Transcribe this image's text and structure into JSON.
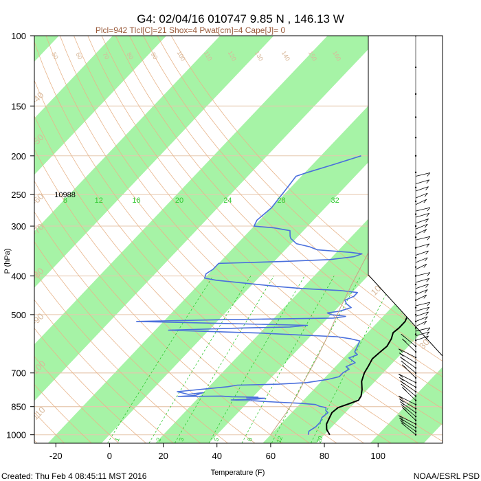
{
  "chart_data": {
    "type": "line",
    "title": "G4: 02/04/16 010747   9.85 N , 146.13 W",
    "subtitle": "Plcl=942 Tlcl[C]=21 Shox=4 Pwat[cm]=4 Cape[J]= 0",
    "xlabel": "Temperature (F)",
    "ylabel": "P (hPa)",
    "xlim": [
      -28,
      124
    ],
    "ylim": [
      1050,
      100
    ],
    "y_scale": "log",
    "x_ticks": [
      -20,
      0,
      20,
      40,
      60,
      80,
      100
    ],
    "y_ticks": [
      100,
      150,
      200,
      250,
      300,
      400,
      500,
      700,
      850,
      1000
    ],
    "footer_left": "Created: Thu Feb  4 08:45:11 MST 2016",
    "footer_right": "NOAA/ESRL PSD",
    "height_label": {
      "text": "10988",
      "x": -20.5,
      "p": 250
    },
    "colors": {
      "temperature": "#000000",
      "dewpoint": "#4a6fdc",
      "isotherm_band": "#a6f3a6",
      "dry_adiabat": "#e8b48a",
      "mixing_ratio": "#2fc82f",
      "parcel": "#c9a383",
      "subtitle": "#9a5a3a",
      "wind": "#000000"
    },
    "mixing_ratio_labels": [
      {
        "text": "8",
        "x": -16.5
      },
      {
        "text": "12",
        "x": -4
      },
      {
        "text": "16",
        "x": 10
      },
      {
        "text": "20",
        "x": 26
      },
      {
        "text": "24",
        "x": 44
      },
      {
        "text": "28",
        "x": 64
      },
      {
        "text": "32",
        "x": 84
      }
    ],
    "bottom_mixing_labels": [
      {
        "text": "1",
        "x": 3.5
      },
      {
        "text": "2",
        "x": 19
      },
      {
        "text": "3",
        "x": 27.5
      },
      {
        "text": "5",
        "x": 40.5
      },
      {
        "text": "8",
        "x": 53
      },
      {
        "text": "12",
        "x": 64
      },
      {
        "text": "20",
        "x": 79
      }
    ],
    "dry_adiabat_labels": [
      {
        "text": "50",
        "x": -21,
        "p": 113
      },
      {
        "text": "60",
        "x": -12,
        "p": 113
      },
      {
        "text": "70",
        "x": -2,
        "p": 113
      },
      {
        "text": "80",
        "x": 7,
        "p": 113
      },
      {
        "text": "90",
        "x": 16,
        "p": 113
      },
      {
        "text": "100",
        "x": 26,
        "p": 113
      },
      {
        "text": "110",
        "x": 36,
        "p": 113
      },
      {
        "text": "120",
        "x": 45,
        "p": 113
      },
      {
        "text": "130",
        "x": 55,
        "p": 113
      },
      {
        "text": "140",
        "x": 65,
        "p": 113
      },
      {
        "text": "150",
        "x": 75,
        "p": 113
      },
      {
        "text": "160",
        "x": 84,
        "p": 113
      }
    ],
    "isotherm_labels": [
      {
        "text": "-30",
        "x": 100,
        "p": 130
      },
      {
        "text": "-20",
        "x": 100,
        "p": 190
      },
      {
        "text": "-10",
        "x": 100,
        "p": 260
      },
      {
        "text": "0",
        "x": 100,
        "p": 350
      },
      {
        "text": "10",
        "x": 100,
        "p": 440
      },
      {
        "text": "20",
        "x": 111,
        "p": 500
      },
      {
        "text": "30",
        "x": 118,
        "p": 600
      },
      {
        "text": "-40",
        "x": -26,
        "p": 145
      },
      {
        "text": "-50",
        "x": -26,
        "p": 185
      },
      {
        "text": "-60",
        "x": -26,
        "p": 260
      },
      {
        "text": "-70",
        "x": -26,
        "p": 310
      },
      {
        "text": "-80",
        "x": -26,
        "p": 400
      },
      {
        "text": "-90",
        "x": -26,
        "p": 520
      },
      {
        "text": "-100",
        "x": -26,
        "p": 690
      },
      {
        "text": "-110",
        "x": -26,
        "p": 900
      }
    ],
    "series": [
      {
        "name": "",
        "role": "temperature",
        "points": [
          [
            36,
            200
          ],
          [
            38,
            210
          ],
          [
            40,
            222
          ],
          [
            43,
            235
          ],
          [
            46,
            248
          ],
          [
            50,
            262
          ],
          [
            53,
            275
          ],
          [
            55,
            290
          ],
          [
            56,
            300
          ],
          [
            57,
            318
          ],
          [
            58,
            335
          ],
          [
            60,
            352
          ],
          [
            62,
            372
          ],
          [
            63,
            392
          ],
          [
            64,
            410
          ],
          [
            65,
            430
          ],
          [
            66,
            450
          ],
          [
            67,
            470
          ],
          [
            68,
            490
          ],
          [
            69,
            505
          ],
          [
            70,
            520
          ],
          [
            70,
            540
          ],
          [
            69.5,
            555
          ],
          [
            71,
            575
          ],
          [
            72,
            600
          ],
          [
            71.5,
            620
          ],
          [
            71,
            645
          ],
          [
            72,
            670
          ],
          [
            73,
            700
          ],
          [
            75,
            735
          ],
          [
            78,
            770
          ],
          [
            80,
            800
          ],
          [
            80.5,
            820
          ],
          [
            78,
            838
          ],
          [
            75.5,
            855
          ],
          [
            75,
            880
          ],
          [
            76,
            910
          ],
          [
            77,
            940
          ],
          [
            79,
            970
          ],
          [
            82,
            1000
          ]
        ]
      },
      {
        "name": "",
        "role": "dewpoint",
        "points": [
          [
            -5,
            200
          ],
          [
            -12,
            210
          ],
          [
            -19,
            220
          ],
          [
            -22,
            225
          ],
          [
            -21,
            245
          ],
          [
            -20,
            270
          ],
          [
            -21,
            290
          ],
          [
            -20,
            300
          ],
          [
            -12,
            303
          ],
          [
            -5,
            308
          ],
          [
            -3,
            318
          ],
          [
            -2,
            322
          ],
          [
            2,
            332
          ],
          [
            8,
            338
          ],
          [
            12,
            344
          ],
          [
            25,
            349
          ],
          [
            30,
            352
          ],
          [
            28,
            358
          ],
          [
            20,
            364
          ],
          [
            3,
            368
          ],
          [
            -20,
            372
          ],
          [
            -20,
            385
          ],
          [
            -21,
            395
          ],
          [
            -20,
            405
          ],
          [
            -15,
            410
          ],
          [
            10,
            425
          ],
          [
            20,
            430
          ],
          [
            35,
            435
          ],
          [
            42,
            440
          ],
          [
            42,
            450
          ],
          [
            40,
            460
          ],
          [
            42,
            470
          ],
          [
            45,
            480
          ],
          [
            42,
            490
          ],
          [
            38,
            495
          ],
          [
            40,
            500
          ],
          [
            46,
            505
          ],
          [
            42,
            510
          ],
          [
            0,
            515
          ],
          [
            -30,
            520
          ],
          [
            35,
            532
          ],
          [
            29,
            537
          ],
          [
            12,
            540
          ],
          [
            -15,
            547
          ],
          [
            20,
            556
          ],
          [
            35,
            562
          ],
          [
            50,
            568
          ],
          [
            56,
            575
          ],
          [
            60,
            582
          ],
          [
            61,
            600
          ],
          [
            62,
            620
          ],
          [
            64,
            630
          ],
          [
            62,
            642
          ],
          [
            66,
            660
          ],
          [
            64,
            675
          ],
          [
            66,
            685
          ],
          [
            65,
            700
          ],
          [
            65,
            715
          ],
          [
            62,
            726
          ],
          [
            55,
            740
          ],
          [
            45,
            747
          ],
          [
            30,
            751
          ],
          [
            27,
            758
          ],
          [
            10,
            780
          ],
          [
            15,
            792
          ],
          [
            20,
            784
          ],
          [
            18,
            797
          ],
          [
            12,
            802
          ],
          [
            28,
            800
          ],
          [
            32,
            803
          ],
          [
            42,
            805
          ],
          [
            38,
            808
          ],
          [
            45,
            810
          ],
          [
            42,
            814
          ],
          [
            33,
            818
          ],
          [
            42,
            822
          ],
          [
            47,
            826
          ],
          [
            60,
            834
          ],
          [
            66,
            840
          ],
          [
            68,
            848
          ],
          [
            71,
            855
          ],
          [
            72,
            870
          ],
          [
            73.5,
            880
          ],
          [
            73,
            905
          ],
          [
            74,
            930
          ],
          [
            74,
            955
          ],
          [
            73,
            980
          ],
          [
            74,
            1000
          ]
        ]
      },
      {
        "name": "",
        "role": "parcel",
        "points": [
          [
            25,
            225
          ],
          [
            26,
            250
          ],
          [
            28,
            290
          ],
          [
            32,
            350
          ],
          [
            37,
            420
          ],
          [
            41,
            480
          ],
          [
            46,
            560
          ],
          [
            50,
            640
          ],
          [
            53,
            720
          ],
          [
            56,
            800
          ],
          [
            58,
            880
          ],
          [
            59,
            940
          ],
          [
            60,
            1000
          ]
        ]
      }
    ],
    "wind_barb_pressures": [
      225,
      235,
      245,
      255,
      265,
      275,
      285,
      295,
      305,
      315,
      325,
      340,
      355,
      370,
      385,
      400,
      415,
      430,
      445,
      460,
      475,
      490,
      505,
      520,
      535,
      550,
      565,
      580,
      600,
      620,
      640,
      660,
      680,
      700,
      720,
      740,
      760,
      780,
      800,
      820,
      840,
      860,
      880,
      900,
      920,
      940,
      960,
      980,
      1000
    ]
  }
}
